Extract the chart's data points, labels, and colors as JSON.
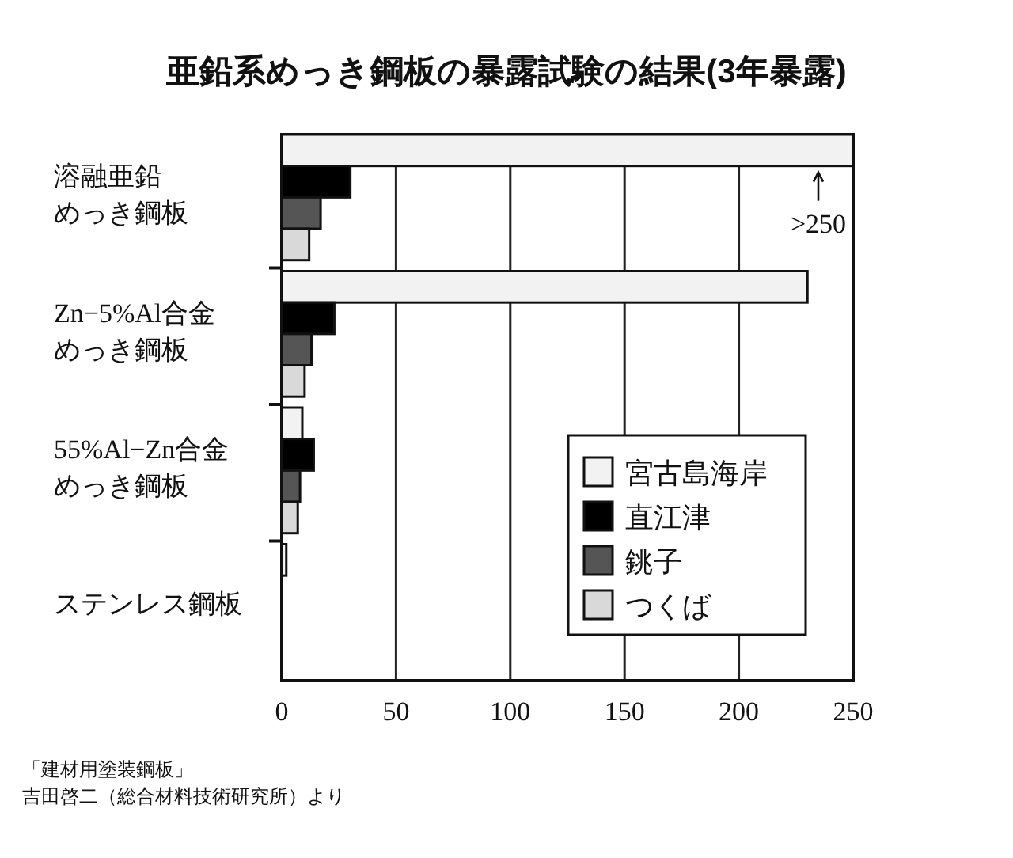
{
  "chart_data": {
    "type": "bar",
    "orientation": "horizontal",
    "title": "亜鉛系めっき鋼板の暴露試験の結果(3年暴露)",
    "categories": [
      "溶融亜鉛めっき鋼板",
      "Zn−5%Al合金めっき鋼板",
      "55%Al−Zn合金めっき鋼板",
      "ステンレス鋼板"
    ],
    "series": [
      {
        "name": "宮古島海岸",
        "color": "#f2f2f2",
        "values": [
          250,
          230,
          9,
          2
        ]
      },
      {
        "name": "直江津",
        "color": "#000000",
        "values": [
          30,
          23,
          14,
          null
        ]
      },
      {
        "name": "銚子",
        "color": "#555555",
        "values": [
          17,
          13,
          8,
          null
        ]
      },
      {
        "name": "つくば",
        "color": "#d9d9d9",
        "values": [
          12,
          10,
          7,
          null
        ]
      }
    ],
    "xlim": [
      0,
      250
    ],
    "xticks": [
      0,
      50,
      100,
      150,
      200,
      250
    ],
    "grid": "x",
    "legend": "bottom right",
    "annotations": [
      ">250",
      "「建材用塗装鋼板」",
      "吉田啓二（総合材料技術研究所）より"
    ]
  }
}
